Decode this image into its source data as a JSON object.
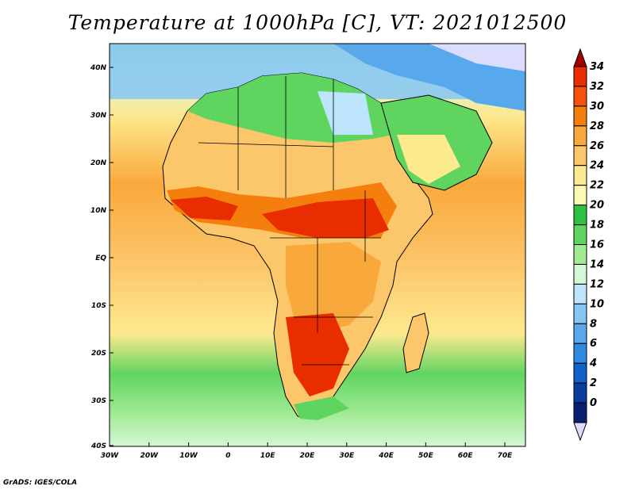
{
  "title": "Temperature at 1000hPa [C], VT: 2021012500",
  "credit": "GrADS: IGES/COLA",
  "lat_labels": [
    "40N",
    "30N",
    "20N",
    "10N",
    "EQ",
    "10S",
    "20S",
    "30S",
    "40S"
  ],
  "lon_labels": [
    "30W",
    "20W",
    "10W",
    "0",
    "10E",
    "20E",
    "30E",
    "40E",
    "50E",
    "60E",
    "70E"
  ],
  "colorbar": {
    "labels": [
      "34",
      "32",
      "30",
      "28",
      "26",
      "24",
      "22",
      "20",
      "18",
      "16",
      "14",
      "12",
      "10",
      "8",
      "6",
      "4",
      "2",
      "0"
    ],
    "colors": [
      "#a50000",
      "#e82d00",
      "#f6520b",
      "#f57f0c",
      "#f9a93c",
      "#fcc66b",
      "#fde98e",
      "#fcf9b3",
      "#2ec33e",
      "#5fd560",
      "#a2ea94",
      "#d5f7d8",
      "#bce5fb",
      "#86c6f4",
      "#58a9ec",
      "#2f8be0",
      "#1061c9",
      "#0a3c9e",
      "#07206f",
      "#dcdcfc"
    ]
  },
  "map_colors": {
    "ocean_south": "#5fd560",
    "ocean_mid": "#f9a93c",
    "ocean_north": "#86c6f4",
    "land_hot": "#e82d00",
    "land_warm": "#f57f0c",
    "land_mild": "#fcc66b",
    "land_cool": "#2ec33e",
    "land_cold": "#58a9ec"
  }
}
